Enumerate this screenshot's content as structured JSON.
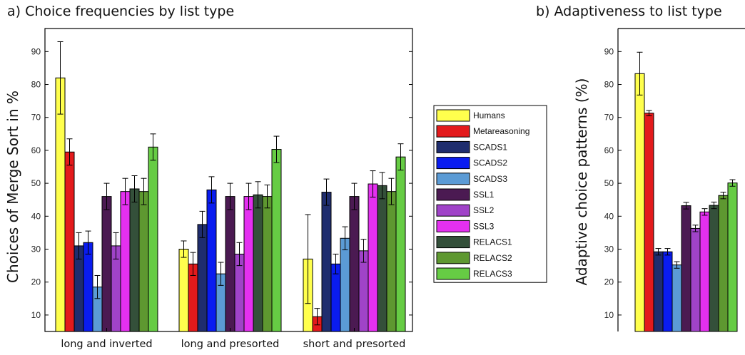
{
  "colors": {
    "Humans": "#ffff4d",
    "Metareasoning": "#e31a1c",
    "SCADS1": "#1f2d6e",
    "SCADS2": "#0a1cf0",
    "SCADS3": "#5b9bd5",
    "SSL1": "#4b1a52",
    "SSL2": "#a043c8",
    "SSL3": "#e430f0",
    "RELACS1": "#34503a",
    "RELACS2": "#5e9830",
    "RELACS3": "#66cc44"
  },
  "chart_data": [
    {
      "type": "bar",
      "title": "a) Choice frequencies by list type",
      "ylabel": "Choices of Merge Sort in %",
      "xlabel": "",
      "ylim": [
        5,
        97
      ],
      "yticks": [
        10,
        20,
        30,
        40,
        50,
        60,
        70,
        80,
        90
      ],
      "grid": false,
      "legend": "right",
      "categories": [
        "long and inverted",
        "long and presorted",
        "short and presorted"
      ],
      "series": [
        {
          "name": "Humans",
          "values": [
            82,
            30,
            27
          ],
          "err": [
            11,
            2.5,
            13.5
          ]
        },
        {
          "name": "Metareasoning",
          "values": [
            59.5,
            25.5,
            9.5
          ],
          "err": [
            4,
            3.5,
            2.5
          ]
        },
        {
          "name": "SCADS1",
          "values": [
            31,
            37.5,
            47.3
          ],
          "err": [
            4,
            4,
            4
          ]
        },
        {
          "name": "SCADS2",
          "values": [
            32,
            48,
            25.5
          ],
          "err": [
            3.5,
            4,
            3
          ]
        },
        {
          "name": "SCADS3",
          "values": [
            18.5,
            22.5,
            33.3
          ],
          "err": [
            3.5,
            3.5,
            3.5
          ]
        },
        {
          "name": "SSL1",
          "values": [
            46,
            46,
            46
          ],
          "err": [
            4,
            4,
            4
          ]
        },
        {
          "name": "SSL2",
          "values": [
            31,
            28.5,
            29.5
          ],
          "err": [
            4,
            3.5,
            3.5
          ]
        },
        {
          "name": "SSL3",
          "values": [
            47.5,
            46,
            49.8
          ],
          "err": [
            4,
            4,
            4
          ]
        },
        {
          "name": "RELACS1",
          "values": [
            48.3,
            46.5,
            49.3
          ],
          "err": [
            4,
            4,
            4
          ]
        },
        {
          "name": "RELACS2",
          "values": [
            47.5,
            46,
            47.5
          ],
          "err": [
            4,
            3.5,
            4
          ]
        },
        {
          "name": "RELACS3",
          "values": [
            61,
            60.3,
            58
          ],
          "err": [
            4,
            4,
            4
          ]
        }
      ]
    },
    {
      "type": "bar",
      "title": "b) Adaptiveness to list type",
      "ylabel": "Adaptive choice patterns (%)",
      "xlabel": "",
      "ylim": [
        5,
        97
      ],
      "yticks": [
        10,
        20,
        30,
        40,
        50,
        60,
        70,
        80,
        90
      ],
      "grid": false,
      "categories": [
        "Humans",
        "Metareasoning",
        "SCADS1",
        "SCADS2",
        "SCADS3",
        "SSL1",
        "SSL2",
        "SSL3",
        "RELACS1",
        "RELACS2",
        "RELACS3"
      ],
      "values": [
        83.3,
        71.3,
        29.2,
        29.2,
        25.2,
        43.2,
        36.3,
        41.3,
        43.3,
        46.3,
        50.1
      ],
      "err": [
        6.5,
        0.8,
        1,
        1,
        1,
        1,
        1,
        1,
        1,
        1,
        1
      ]
    }
  ]
}
